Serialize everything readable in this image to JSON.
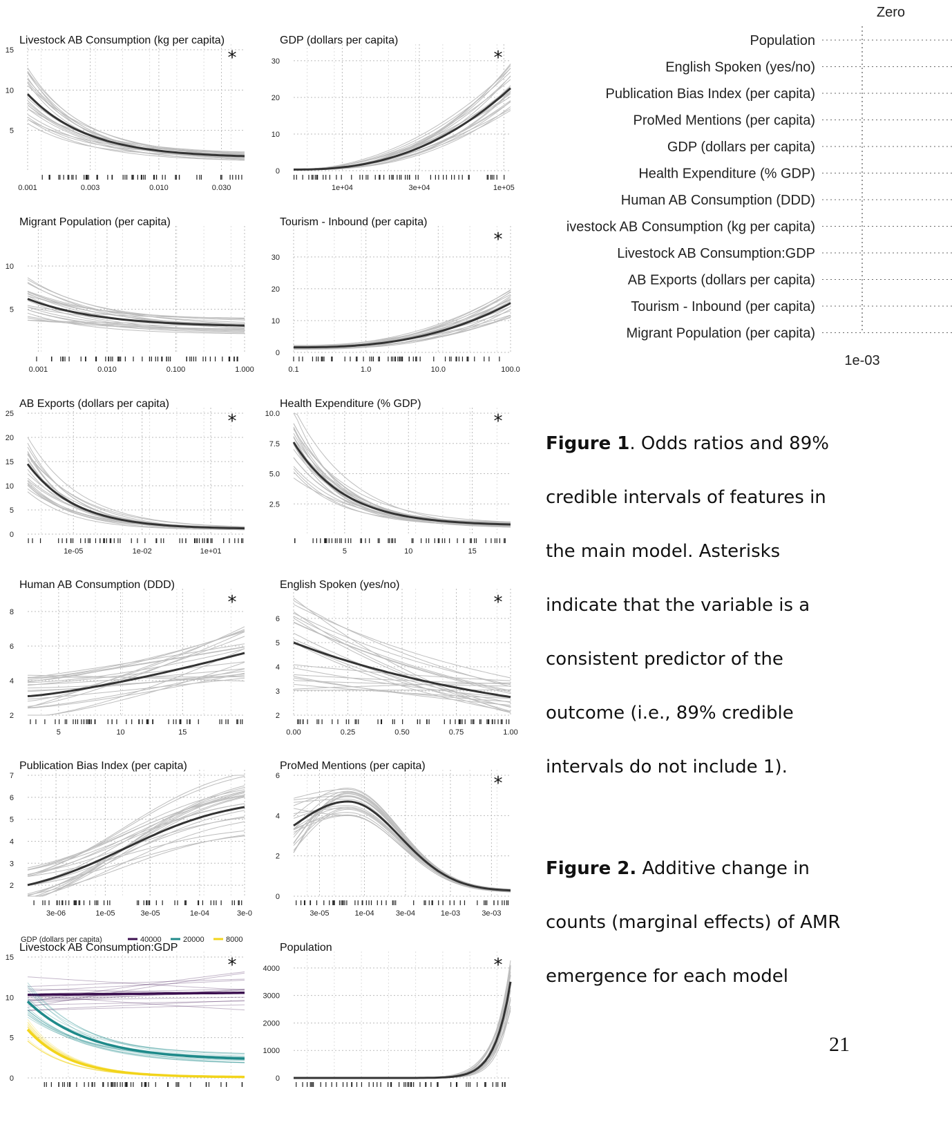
{
  "panels": [
    {
      "id": "p1",
      "title": "Livestock AB Consumption (kg per capita)",
      "star": true,
      "xlog": true,
      "xlim": [
        0.001,
        0.045
      ],
      "ylim": [
        0,
        15
      ],
      "yticks": [
        "5",
        "10",
        "15"
      ],
      "ytickvals": [
        5,
        10,
        15
      ],
      "xticks": [
        "0.001",
        "0.003",
        "0.010",
        "0.030"
      ],
      "xtickvals": [
        0.001,
        0.003,
        0.01,
        0.03
      ],
      "curve": {
        "type": "exp",
        "y0": 9.5,
        "y1": 1.8,
        "rate": 1.2
      }
    },
    {
      "id": "p2",
      "title": "GDP (dollars per capita)",
      "star": true,
      "xlog": true,
      "xlim": [
        5000,
        110000
      ],
      "ylim": [
        0,
        33
      ],
      "yticks": [
        "0",
        "10",
        "20",
        "30"
      ],
      "ytickvals": [
        0,
        10,
        20,
        30
      ],
      "xticks": [
        "1e+04",
        "3e+04",
        "1e+05"
      ],
      "xtickvals": [
        10000,
        30000,
        100000
      ],
      "curve": {
        "type": "pow",
        "y0": 0.3,
        "y1": 22.5,
        "rate": 2.4
      }
    },
    {
      "id": "p3",
      "title": "Migrant Population (per capita)",
      "star": false,
      "xlog": true,
      "xlim": [
        0.0007,
        1.0
      ],
      "ylim": [
        0,
        14
      ],
      "yticks": [
        "5",
        "10"
      ],
      "ytickvals": [
        5,
        10
      ],
      "xticks": [
        "0.001",
        "0.010",
        "0.100",
        "1.000"
      ],
      "xtickvals": [
        0.001,
        0.01,
        0.1,
        1.0
      ],
      "curve": {
        "type": "exp",
        "y0": 6.2,
        "y1": 3.1,
        "rate": 1.0
      }
    },
    {
      "id": "p4",
      "title": "Tourism - Inbound (per capita)",
      "star": true,
      "xlog": true,
      "xlim": [
        0.1,
        100
      ],
      "ylim": [
        0,
        38
      ],
      "yticks": [
        "0",
        "10",
        "20",
        "30"
      ],
      "ytickvals": [
        0,
        10,
        20,
        30
      ],
      "xticks": [
        "0.1",
        "1.0",
        "10.0",
        "100.0"
      ],
      "xtickvals": [
        0.1,
        1,
        10,
        100
      ],
      "curve": {
        "type": "pow",
        "y0": 1.6,
        "y1": 15.5,
        "rate": 2.6
      }
    },
    {
      "id": "p5",
      "title": "AB Exports (dollars per capita)",
      "star": true,
      "xlog": true,
      "xlim": [
        1e-07,
        300
      ],
      "ylim": [
        0,
        25
      ],
      "yticks": [
        "0",
        "5",
        "10",
        "15",
        "20",
        "25"
      ],
      "ytickvals": [
        0,
        5,
        10,
        15,
        20,
        25
      ],
      "xticks": [
        "1e-05",
        "1e-02",
        "1e+01"
      ],
      "xtickvals": [
        1e-05,
        0.01,
        10
      ],
      "curve": {
        "type": "exp",
        "y0": 14.5,
        "y1": 1.2,
        "rate": 1.5
      }
    },
    {
      "id": "p6",
      "title": "Health Expenditure (% GDP)",
      "star": true,
      "xlog": false,
      "xlim": [
        1,
        18
      ],
      "ylim": [
        0,
        10
      ],
      "yticks": [
        "2.5",
        "5.0",
        "7.5",
        "10.0"
      ],
      "ytickvals": [
        2.5,
        5,
        7.5,
        10
      ],
      "xticks": [
        "5",
        "10",
        "15"
      ],
      "xtickvals": [
        5,
        10,
        15
      ],
      "curve": {
        "type": "exp",
        "y0": 7.6,
        "y1": 0.8,
        "rate": 1.4
      }
    },
    {
      "id": "p7",
      "title": "Human AB Consumption (DDD)",
      "star": true,
      "xlog": false,
      "xlim": [
        2.5,
        20
      ],
      "ylim": [
        2,
        9
      ],
      "yticks": [
        "2",
        "4",
        "6",
        "8"
      ],
      "ytickvals": [
        2,
        4,
        6,
        8
      ],
      "xticks": [
        "5",
        "10",
        "15"
      ],
      "xtickvals": [
        5,
        10,
        15
      ],
      "curve": {
        "type": "pow",
        "y0": 3.1,
        "y1": 5.6,
        "rate": 1.3
      }
    },
    {
      "id": "p8",
      "title": "English Spoken (yes/no)",
      "star": true,
      "xlog": false,
      "xlim": [
        0,
        1
      ],
      "ylim": [
        2,
        7
      ],
      "yticks": [
        "2",
        "3",
        "4",
        "5",
        "6"
      ],
      "ytickvals": [
        2,
        3,
        4,
        5,
        6
      ],
      "xticks": [
        "0.00",
        "0.25",
        "0.50",
        "0.75",
        "1.00"
      ],
      "xtickvals": [
        0,
        0.25,
        0.5,
        0.75,
        1
      ],
      "curve": {
        "type": "exp",
        "y0": 5.0,
        "y1": 2.75,
        "rate": 0.3
      }
    },
    {
      "id": "p9",
      "title": "Publication Bias Index (per capita)",
      "star": false,
      "xlog": true,
      "xlim": [
        1.5e-06,
        0.0003
      ],
      "ylim": [
        1.5,
        7
      ],
      "yticks": [
        "2",
        "3",
        "4",
        "5",
        "6",
        "7"
      ],
      "ytickvals": [
        2,
        3,
        4,
        5,
        6,
        7
      ],
      "xticks": [
        "3e-06",
        "1e-05",
        "3e-05",
        "1e-04",
        "3e-0"
      ],
      "xtickvals": [
        3e-06,
        1e-05,
        3e-05,
        0.0001,
        0.0003
      ],
      "curve": {
        "type": "sig",
        "y0": 2.0,
        "y1": 5.6,
        "rate": 1.0
      }
    },
    {
      "id": "p10",
      "title": "ProMed Mentions (per capita)",
      "star": true,
      "xlog": true,
      "xlim": [
        1.5e-05,
        0.005
      ],
      "ylim": [
        0,
        6
      ],
      "yticks": [
        "0",
        "2",
        "4",
        "6"
      ],
      "ytickvals": [
        0,
        2,
        4,
        6
      ],
      "xticks": [
        "3e-05",
        "1e-04",
        "3e-04",
        "1e-03",
        "3e-03"
      ],
      "xtickvals": [
        3e-05,
        0.0001,
        0.0003,
        0.001,
        0.003
      ],
      "curve": {
        "type": "hump",
        "y0": 3.5,
        "y1": 0.25,
        "rate": 4.7
      }
    },
    {
      "id": "p11",
      "title": "Livestock AB Consumption:GDP",
      "star": true,
      "xlog": true,
      "xlim": [
        0.001,
        0.045
      ],
      "ylim": [
        0,
        15
      ],
      "yticks": [
        "0",
        "5",
        "10",
        "15"
      ],
      "ytickvals": [
        0,
        5,
        10,
        15
      ],
      "xticks": [],
      "xtickvals": [],
      "legend": {
        "title": "GDP (dollars per capita)",
        "items": [
          "40000",
          "20000",
          "8000"
        ],
        "colors": [
          "#3b0f4f",
          "#1f8a8a",
          "#f2d41b"
        ]
      },
      "curve": {
        "type": "multi",
        "lines": [
          [
            10.3,
            10.6,
            0.1
          ],
          [
            9.5,
            2.3,
            1.4
          ],
          [
            6.0,
            0.1,
            2.0
          ]
        ]
      }
    },
    {
      "id": "p12",
      "title": "Population",
      "star": true,
      "xlog": true,
      "xlim": [
        10000,
        1500000000
      ],
      "ylim": [
        0,
        4400
      ],
      "yticks": [
        "0",
        "1000",
        "2000",
        "3000",
        "4000"
      ],
      "ytickvals": [
        0,
        1000,
        2000,
        3000,
        4000
      ],
      "xticks": [],
      "xtickvals": [],
      "curve": {
        "type": "pow",
        "y0": 0,
        "y1": 3500,
        "rate": 14
      }
    }
  ],
  "forest": {
    "zero_label": "Zero",
    "x_label": "1e-03",
    "rows": [
      "Population",
      "English Spoken (yes/no)",
      "Publication Bias Index (per capita)",
      "ProMed Mentions (per capita)",
      "GDP (dollars per capita)",
      "Health Expenditure (% GDP)",
      "Human AB Consumption (DDD)",
      "Livestock AB Consumption (kg per capita)",
      "Livestock AB Consumption:GDP",
      "AB Exports (dollars per capita)",
      "Tourism - Inbound (per capita)",
      "Migrant Population (per capita)"
    ]
  },
  "captions": {
    "fig1_label": "Figure 1",
    "fig1_lines": [
      ". Odds ratios and 89%",
      "credible intervals of features in",
      "the main model. Asterisks",
      "indicate that the variable is a",
      "consistent predictor of the",
      "outcome (i.e., 89% credible",
      "intervals do not include 1)."
    ],
    "fig2_label": "Figure 2.",
    "fig2_lines": [
      " Additive change in",
      "counts (marginal effects) of AMR",
      "emergence for each model"
    ]
  },
  "page_number": "21",
  "star_symbol": "*"
}
